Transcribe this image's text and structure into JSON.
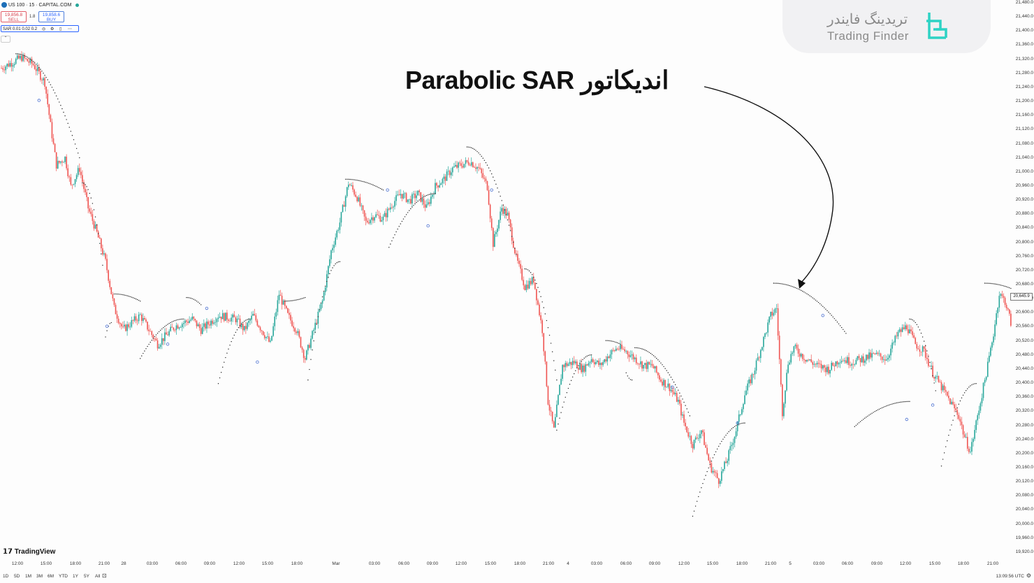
{
  "header": {
    "symbol_line": "US 100 · 15 · CAPITAL.COM",
    "sell_price": "19,856.8",
    "sell_label": "SELL",
    "spread": "1.8",
    "buy_price": "19,858.6",
    "buy_label": "BUY",
    "indicator_label": "SAR 0.01 0.02 0.2"
  },
  "annotation": {
    "text": "اندیکاتور Parabolic SAR"
  },
  "watermark": {
    "persian": "تریدینگ فایندر",
    "english": "Trading Finder"
  },
  "branding": {
    "tradingview": "TradingView"
  },
  "price_axis": {
    "labels": [
      "21,480.0",
      "21,440.0",
      "21,400.0",
      "21,360.0",
      "21,320.0",
      "21,280.0",
      "21,240.0",
      "21,200.0",
      "21,160.0",
      "21,120.0",
      "21,080.0",
      "21,040.0",
      "21,000.0",
      "20,960.0",
      "20,920.0",
      "20,880.0",
      "20,840.0",
      "20,800.0",
      "20,760.0",
      "20,720.0",
      "20,680.0",
      "20,640.0",
      "20,600.0",
      "20,560.0",
      "20,520.0",
      "20,480.0",
      "20,440.0",
      "20,400.0",
      "20,360.0",
      "20,320.0",
      "20,280.0",
      "20,240.0",
      "20,200.0",
      "20,160.0",
      "20,120.0",
      "20,080.0",
      "20,040.0",
      "20,000.0",
      "19,960.0",
      "19,920.0"
    ],
    "current_price": "20,645.9"
  },
  "time_axis": {
    "labels": [
      "12:00",
      "15:00",
      "18:00",
      "21:00",
      "28",
      "03:00",
      "06:00",
      "09:00",
      "12:00",
      "15:00",
      "18:00",
      "Mar",
      "03:00",
      "06:00",
      "09:00",
      "12:00",
      "15:00",
      "18:00",
      "21:00",
      "4",
      "03:00",
      "06:00",
      "09:00",
      "12:00",
      "15:00",
      "18:00",
      "21:00",
      "5",
      "03:00",
      "06:00",
      "09:00",
      "12:00",
      "15:00",
      "18:00",
      "21:00"
    ]
  },
  "bottom_bar": {
    "ranges": [
      "1D",
      "5D",
      "1M",
      "3M",
      "6M",
      "YTD",
      "1Y",
      "5Y",
      "All"
    ],
    "clock": "13:09:56 UTC"
  },
  "colors": {
    "up": "#26a69a",
    "down": "#ef5350",
    "sar": "#222222",
    "highlight_dot": "#4a6fd0"
  },
  "chart_data": {
    "type": "candlestick",
    "interval_minutes": 15,
    "ylim": [
      19920,
      21480
    ],
    "anchors": [
      [
        0,
        21290
      ],
      [
        14,
        21320
      ],
      [
        22,
        21300
      ],
      [
        30,
        21250
      ],
      [
        34,
        21130
      ],
      [
        38,
        21020
      ],
      [
        44,
        21040
      ],
      [
        48,
        20960
      ],
      [
        54,
        21010
      ],
      [
        60,
        20900
      ],
      [
        66,
        20830
      ],
      [
        72,
        20750
      ],
      [
        78,
        20620
      ],
      [
        84,
        20560
      ],
      [
        96,
        20600
      ],
      [
        108,
        20520
      ],
      [
        120,
        20570
      ],
      [
        132,
        20590
      ],
      [
        138,
        20560
      ],
      [
        150,
        20600
      ],
      [
        162,
        20590
      ],
      [
        168,
        20560
      ],
      [
        174,
        20600
      ],
      [
        180,
        20560
      ],
      [
        186,
        20520
      ],
      [
        192,
        20660
      ],
      [
        198,
        20600
      ],
      [
        204,
        20560
      ],
      [
        210,
        20480
      ],
      [
        216,
        20560
      ],
      [
        222,
        20640
      ],
      [
        228,
        20780
      ],
      [
        234,
        20860
      ],
      [
        240,
        20970
      ],
      [
        246,
        20930
      ],
      [
        252,
        20860
      ],
      [
        258,
        20880
      ],
      [
        264,
        20870
      ],
      [
        270,
        20910
      ],
      [
        276,
        20940
      ],
      [
        282,
        20920
      ],
      [
        288,
        20940
      ],
      [
        294,
        20900
      ],
      [
        300,
        20960
      ],
      [
        306,
        20980
      ],
      [
        312,
        21010
      ],
      [
        318,
        21020
      ],
      [
        324,
        21030
      ],
      [
        330,
        21010
      ],
      [
        336,
        20960
      ],
      [
        340,
        20800
      ],
      [
        346,
        20900
      ],
      [
        350,
        20880
      ],
      [
        356,
        20760
      ],
      [
        362,
        20680
      ],
      [
        368,
        20700
      ],
      [
        374,
        20560
      ],
      [
        378,
        20360
      ],
      [
        382,
        20280
      ],
      [
        388,
        20460
      ],
      [
        396,
        20470
      ],
      [
        402,
        20450
      ],
      [
        408,
        20480
      ],
      [
        414,
        20460
      ],
      [
        420,
        20490
      ],
      [
        426,
        20510
      ],
      [
        432,
        20500
      ],
      [
        438,
        20480
      ],
      [
        444,
        20460
      ],
      [
        450,
        20460
      ],
      [
        456,
        20420
      ],
      [
        462,
        20400
      ],
      [
        468,
        20360
      ],
      [
        472,
        20300
      ],
      [
        478,
        20240
      ],
      [
        484,
        20280
      ],
      [
        490,
        20180
      ],
      [
        496,
        20140
      ],
      [
        502,
        20200
      ],
      [
        508,
        20280
      ],
      [
        514,
        20380
      ],
      [
        520,
        20440
      ],
      [
        526,
        20520
      ],
      [
        532,
        20600
      ],
      [
        536,
        20620
      ],
      [
        540,
        20330
      ],
      [
        544,
        20470
      ],
      [
        548,
        20510
      ],
      [
        556,
        20480
      ],
      [
        564,
        20460
      ],
      [
        572,
        20450
      ],
      [
        580,
        20480
      ],
      [
        588,
        20470
      ],
      [
        596,
        20480
      ],
      [
        604,
        20490
      ],
      [
        612,
        20480
      ],
      [
        620,
        20550
      ],
      [
        626,
        20570
      ],
      [
        632,
        20520
      ],
      [
        638,
        20500
      ],
      [
        644,
        20440
      ],
      [
        650,
        20400
      ],
      [
        656,
        20360
      ],
      [
        662,
        20320
      ],
      [
        666,
        20260
      ],
      [
        670,
        20220
      ],
      [
        674,
        20300
      ],
      [
        678,
        20380
      ],
      [
        682,
        20460
      ],
      [
        686,
        20550
      ],
      [
        690,
        20660
      ],
      [
        694,
        20640
      ],
      [
        698,
        20580
      ],
      [
        702,
        20600
      ],
      [
        706,
        20570
      ]
    ],
    "sar_segments": [
      {
        "from": [
          10,
          21330
        ],
        "to": [
          54,
          21040
        ],
        "side": "above",
        "circle_at": [
          26,
          21200
        ]
      },
      {
        "from": [
          56,
          20970
        ],
        "to": [
          70,
          20740
        ],
        "side": "above"
      },
      {
        "from": [
          72,
          20540
        ],
        "to": [
          76,
          20580
        ],
        "side": "below",
        "circle_at": [
          73,
          20570
        ]
      },
      {
        "from": [
          78,
          20660
        ],
        "to": [
          96,
          20640
        ],
        "side": "above"
      },
      {
        "from": [
          96,
          20480
        ],
        "to": [
          126,
          20590
        ],
        "side": "below",
        "circle_at": [
          115,
          20520
        ]
      },
      {
        "from": [
          128,
          20650
        ],
        "to": [
          138,
          20630
        ],
        "side": "above",
        "circle_at": [
          142,
          20620
        ]
      },
      {
        "from": [
          150,
          20410
        ],
        "to": [
          172,
          20590
        ],
        "side": "below",
        "circle_at": [
          177,
          20470
        ]
      },
      {
        "from": [
          196,
          20640
        ],
        "to": [
          210,
          20650
        ],
        "side": "above"
      },
      {
        "from": [
          212,
          20420
        ],
        "to": [
          234,
          20750
        ],
        "side": "below"
      },
      {
        "from": [
          238,
          20980
        ],
        "to": [
          264,
          20950
        ],
        "side": "above",
        "circle_at": [
          267,
          20950
        ]
      },
      {
        "from": [
          268,
          20790
        ],
        "to": [
          300,
          20940
        ],
        "side": "below",
        "circle_at": [
          295,
          20850
        ]
      },
      {
        "from": [
          322,
          21070
        ],
        "to": [
          356,
          20770
        ],
        "side": "above",
        "circle_at": [
          339,
          20950
        ]
      },
      {
        "from": [
          362,
          20730
        ],
        "to": [
          384,
          20420
        ],
        "side": "above"
      },
      {
        "from": [
          384,
          20280
        ],
        "to": [
          408,
          20490
        ],
        "side": "below"
      },
      {
        "from": [
          418,
          20530
        ],
        "to": [
          428,
          20520
        ],
        "side": "above"
      },
      {
        "from": [
          432,
          20440
        ],
        "to": [
          436,
          20420
        ],
        "side": "below"
      },
      {
        "from": [
          438,
          20510
        ],
        "to": [
          476,
          20320
        ],
        "side": "above",
        "circle_at": [
          464,
          20400
        ]
      },
      {
        "from": [
          478,
          20040
        ],
        "to": [
          514,
          20300
        ],
        "side": "below",
        "circle_at": [
          509,
          20300
        ]
      },
      {
        "from": [
          534,
          20690
        ],
        "to": [
          584,
          20550
        ],
        "side": "above",
        "circle_at": [
          568,
          20600
        ]
      },
      {
        "from": [
          590,
          20290
        ],
        "to": [
          628,
          20360
        ],
        "side": "below",
        "circle_at": [
          626,
          20310
        ]
      },
      {
        "from": [
          628,
          20590
        ],
        "to": [
          646,
          20390
        ],
        "side": "above",
        "circle_at": [
          644,
          20350
        ]
      },
      {
        "from": [
          650,
          20180
        ],
        "to": [
          674,
          20410
        ],
        "side": "below"
      },
      {
        "from": [
          680,
          20690
        ],
        "to": [
          710,
          20650
        ],
        "side": "above"
      }
    ]
  }
}
